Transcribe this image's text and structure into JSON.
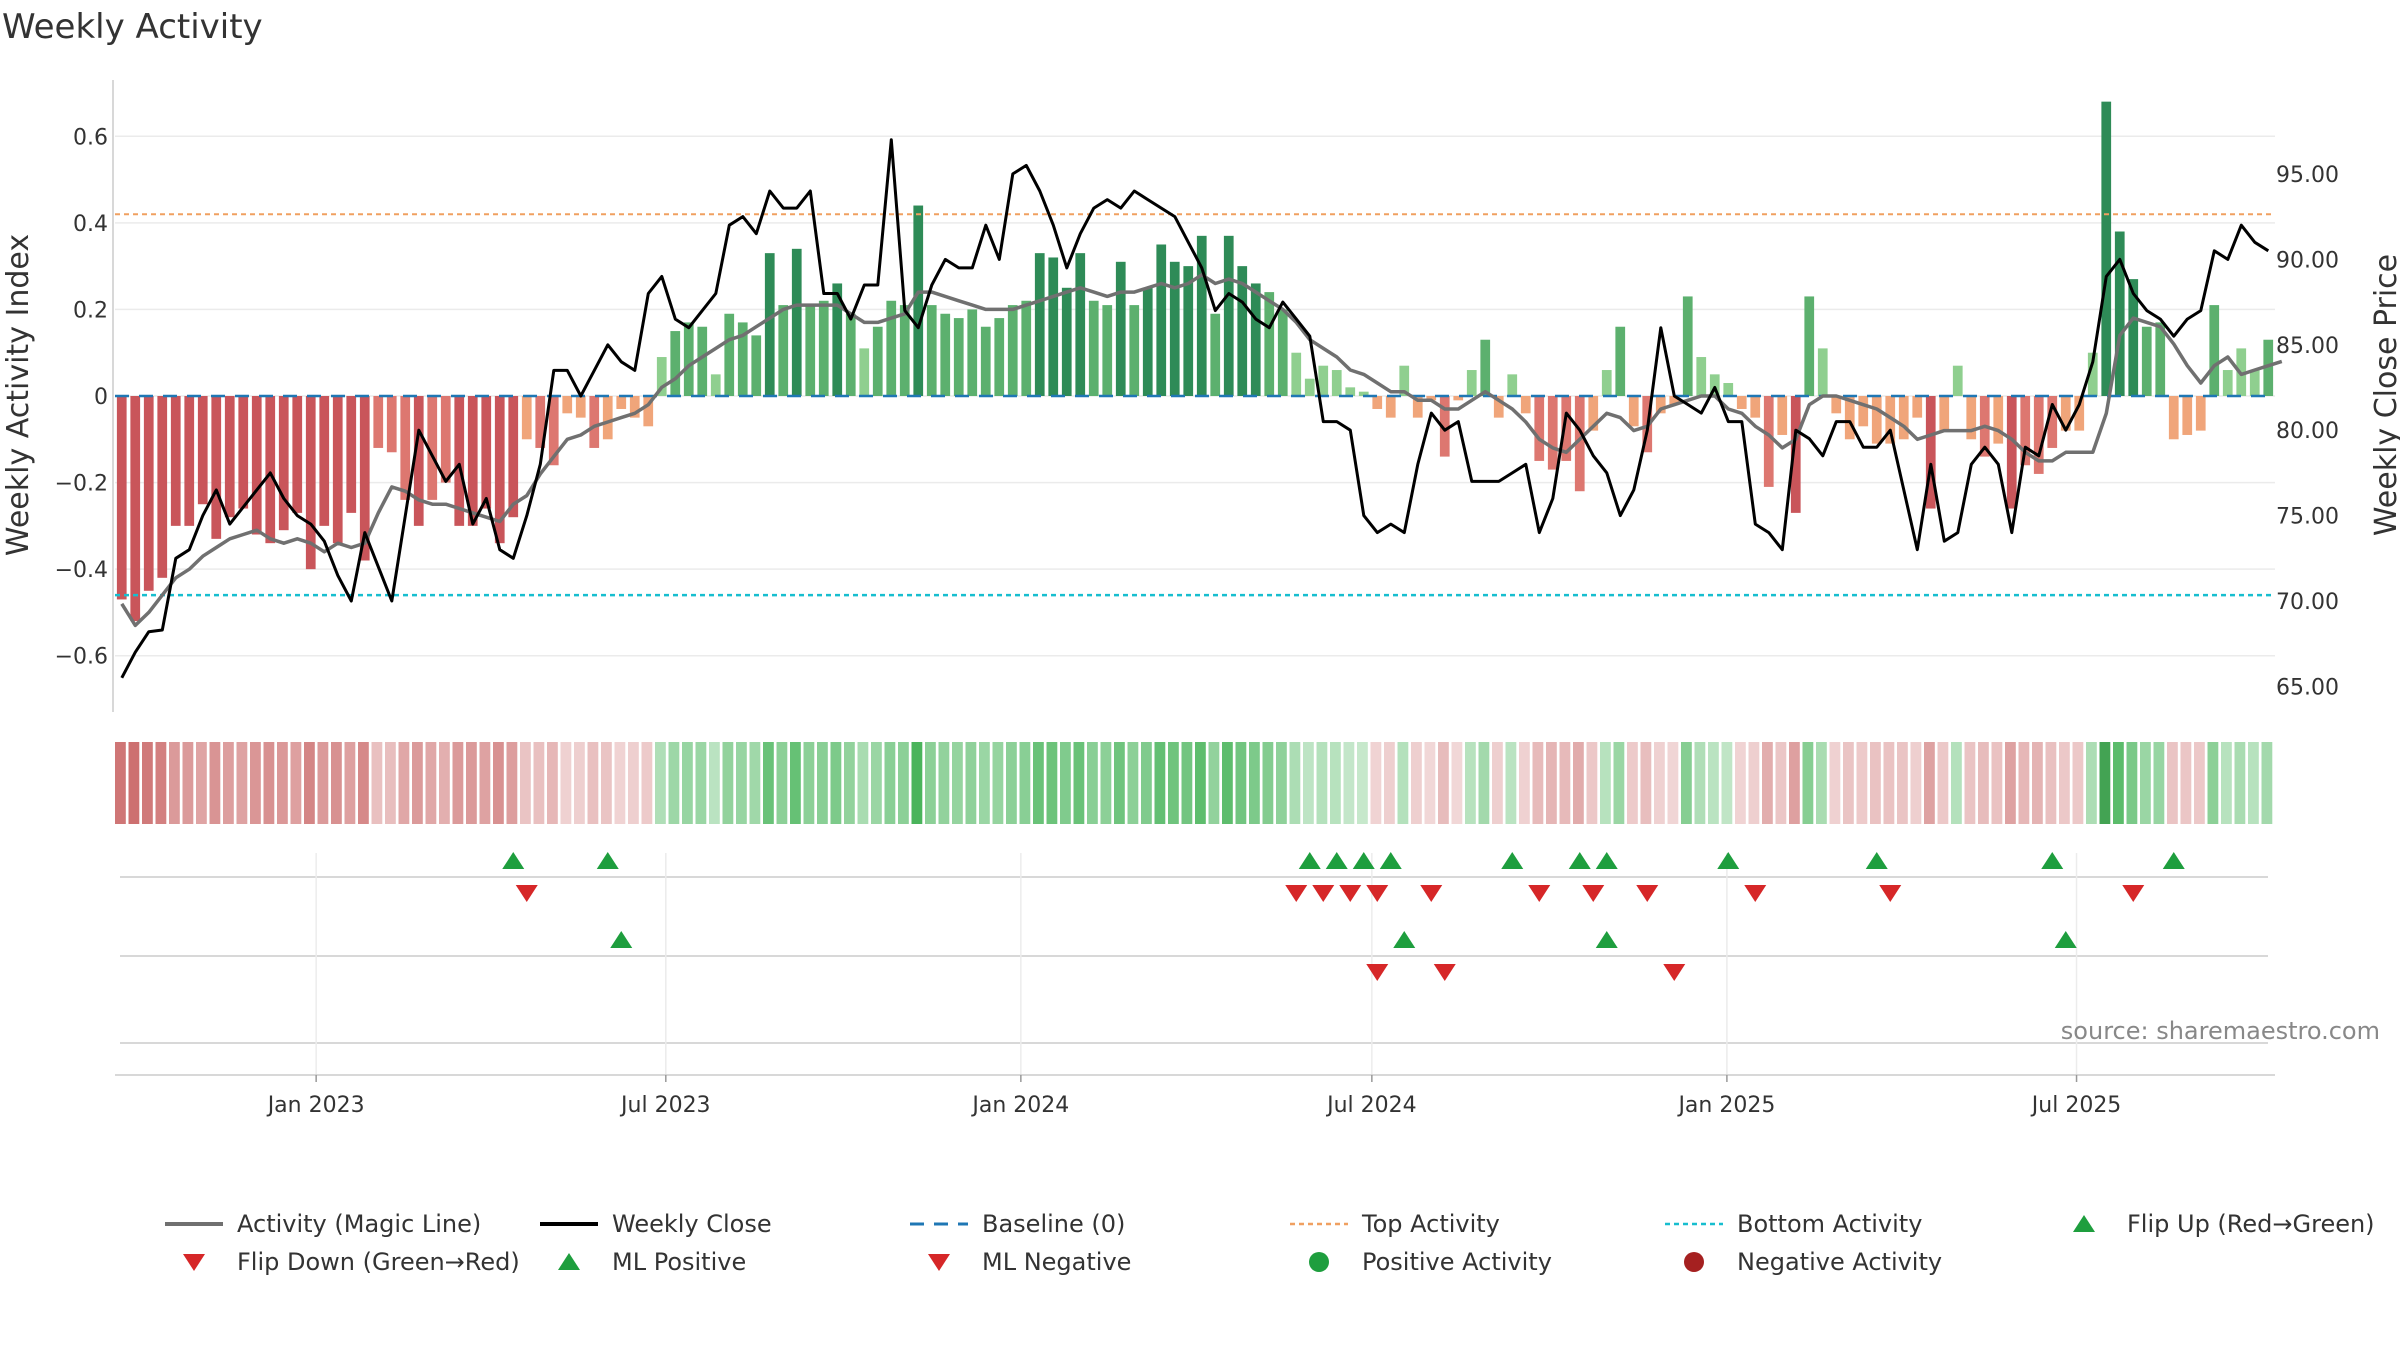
{
  "chart_data": {
    "type": "bar",
    "title": "Weekly Activity",
    "ylabel": "Weekly Activity Index",
    "y2label": "Weekly Close Price",
    "ylim": [
      -0.73,
      0.73
    ],
    "y2lim": [
      63.5,
      100.5
    ],
    "yticks": [
      -0.6,
      -0.4,
      -0.2,
      0,
      0.2,
      0.4,
      0.6
    ],
    "ytick_labels": [
      "−0.6",
      "−0.4",
      "−0.2",
      "0",
      "0.2",
      "0.4",
      "0.6"
    ],
    "y2ticks": [
      65,
      70,
      75,
      80,
      85,
      90,
      95
    ],
    "y2tick_labels": [
      "65.00",
      "70.00",
      "75.00",
      "80.00",
      "85.00",
      "90.00",
      "95.00"
    ],
    "x_start_week_index": 0,
    "xticks": [
      {
        "label": "Jan 2023",
        "week": 14.4
      },
      {
        "label": "Jul 2023",
        "week": 40.3
      },
      {
        "label": "Jan 2024",
        "week": 66.6
      },
      {
        "label": "Jul 2024",
        "week": 92.6
      },
      {
        "label": "Jan 2025",
        "week": 118.9
      },
      {
        "label": "Jul 2025",
        "week": 144.8
      }
    ],
    "top_activity": 0.42,
    "bottom_activity": -0.46,
    "baseline": 0,
    "series": [
      {
        "name": "Weekly Activity Index",
        "kind": "bar",
        "values": [
          -0.47,
          -0.52,
          -0.45,
          -0.42,
          -0.3,
          -0.3,
          -0.25,
          -0.33,
          -0.28,
          -0.26,
          -0.32,
          -0.34,
          -0.31,
          -0.27,
          -0.4,
          -0.3,
          -0.34,
          -0.27,
          -0.38,
          -0.12,
          -0.13,
          -0.24,
          -0.3,
          -0.24,
          -0.2,
          -0.3,
          -0.3,
          -0.26,
          -0.34,
          -0.28,
          -0.1,
          -0.12,
          -0.16,
          -0.04,
          -0.05,
          -0.12,
          -0.1,
          -0.03,
          -0.05,
          -0.07,
          0.09,
          0.15,
          0.17,
          0.16,
          0.05,
          0.19,
          0.17,
          0.14,
          0.33,
          0.21,
          0.34,
          0.21,
          0.22,
          0.26,
          0.19,
          0.11,
          0.16,
          0.22,
          0.21,
          0.44,
          0.21,
          0.19,
          0.18,
          0.2,
          0.16,
          0.18,
          0.21,
          0.22,
          0.33,
          0.32,
          0.25,
          0.33,
          0.22,
          0.21,
          0.31,
          0.21,
          0.25,
          0.35,
          0.31,
          0.3,
          0.37,
          0.19,
          0.37,
          0.3,
          0.26,
          0.24,
          0.2,
          0.1,
          0.04,
          0.07,
          0.06,
          0.02,
          0.01,
          -0.03,
          -0.05,
          0.07,
          -0.05,
          -0.01,
          -0.14,
          -0.01,
          0.06,
          0.13,
          -0.05,
          0.05,
          -0.04,
          -0.15,
          -0.17,
          -0.15,
          -0.22,
          -0.08,
          0.06,
          0.16,
          -0.07,
          -0.13,
          -0.04,
          -0.02,
          0.23,
          0.09,
          0.05,
          0.03,
          -0.03,
          -0.05,
          -0.21,
          -0.09,
          -0.27,
          0.23,
          0.11,
          -0.04,
          -0.1,
          -0.07,
          -0.11,
          -0.11,
          -0.1,
          -0.05,
          -0.26,
          -0.08,
          0.07,
          -0.1,
          -0.14,
          -0.11,
          -0.26,
          -0.16,
          -0.18,
          -0.12,
          -0.08,
          -0.08,
          0.1,
          0.68,
          0.38,
          0.27,
          0.16,
          0.17,
          -0.1,
          -0.09,
          -0.08,
          0.21,
          0.06,
          0.11,
          0.06,
          0.13
        ],
        "colors_note": "green when >0, red when <0"
      },
      {
        "name": "Activity (Magic Line)",
        "kind": "line",
        "color": "#707070",
        "values": [
          -0.48,
          -0.53,
          -0.5,
          -0.46,
          -0.42,
          -0.4,
          -0.37,
          -0.35,
          -0.33,
          -0.32,
          -0.31,
          -0.33,
          -0.34,
          -0.33,
          -0.34,
          -0.36,
          -0.34,
          -0.35,
          -0.34,
          -0.27,
          -0.21,
          -0.22,
          -0.24,
          -0.25,
          -0.25,
          -0.26,
          -0.27,
          -0.28,
          -0.29,
          -0.25,
          -0.23,
          -0.18,
          -0.14,
          -0.1,
          -0.09,
          -0.07,
          -0.06,
          -0.05,
          -0.04,
          -0.02,
          0.02,
          0.04,
          0.07,
          0.09,
          0.11,
          0.13,
          0.14,
          0.16,
          0.18,
          0.2,
          0.21,
          0.21,
          0.21,
          0.21,
          0.19,
          0.17,
          0.17,
          0.18,
          0.19,
          0.24,
          0.24,
          0.23,
          0.22,
          0.21,
          0.2,
          0.2,
          0.2,
          0.21,
          0.22,
          0.23,
          0.24,
          0.25,
          0.24,
          0.23,
          0.24,
          0.24,
          0.25,
          0.26,
          0.25,
          0.26,
          0.28,
          0.26,
          0.27,
          0.26,
          0.24,
          0.22,
          0.2,
          0.17,
          0.13,
          0.11,
          0.09,
          0.06,
          0.05,
          0.03,
          0.01,
          0.01,
          -0.01,
          -0.01,
          -0.03,
          -0.03,
          -0.01,
          0.01,
          -0.01,
          -0.03,
          -0.06,
          -0.1,
          -0.12,
          -0.13,
          -0.1,
          -0.07,
          -0.04,
          -0.05,
          -0.08,
          -0.07,
          -0.03,
          -0.02,
          -0.01,
          0.0,
          0.0,
          -0.03,
          -0.04,
          -0.07,
          -0.09,
          -0.12,
          -0.1,
          -0.02,
          0.0,
          0.0,
          -0.01,
          -0.02,
          -0.03,
          -0.05,
          -0.07,
          -0.1,
          -0.09,
          -0.08,
          -0.08,
          -0.08,
          -0.07,
          -0.08,
          -0.1,
          -0.13,
          -0.15,
          -0.15,
          -0.13,
          -0.13,
          -0.13,
          -0.04,
          0.14,
          0.18,
          0.17,
          0.16,
          0.12,
          0.07,
          0.03,
          0.07,
          0.09,
          0.05,
          0.06,
          0.07,
          0.08
        ]
      },
      {
        "name": "Weekly Close",
        "kind": "line",
        "axis": "right",
        "color": "#000000",
        "values": [
          65.5,
          67.0,
          68.2,
          68.3,
          72.5,
          73.0,
          75.0,
          76.5,
          74.5,
          75.5,
          76.5,
          77.5,
          76.0,
          75.0,
          74.5,
          73.5,
          71.5,
          70.0,
          74.0,
          72.0,
          70.0,
          75.0,
          80.0,
          78.5,
          77.0,
          78.0,
          74.5,
          76.0,
          73.0,
          72.5,
          75.0,
          78.0,
          83.5,
          83.5,
          82.0,
          83.5,
          85.0,
          84.0,
          83.5,
          88.0,
          89.0,
          86.5,
          86.0,
          87.0,
          88.0,
          92.0,
          92.5,
          91.5,
          94.0,
          93.0,
          93.0,
          94.0,
          88.0,
          88.0,
          86.5,
          88.5,
          88.5,
          97.0,
          87.0,
          86.0,
          88.5,
          90.0,
          89.5,
          89.5,
          92.0,
          90.0,
          95.0,
          95.5,
          94.0,
          92.0,
          89.5,
          91.5,
          93.0,
          93.5,
          93.0,
          94.0,
          93.5,
          93.0,
          92.5,
          91.0,
          89.5,
          87.0,
          88.0,
          87.5,
          86.5,
          86.0,
          87.5,
          86.5,
          85.5,
          80.5,
          80.5,
          80.0,
          75.0,
          74.0,
          74.5,
          74.0,
          78.0,
          81.0,
          80.0,
          80.5,
          77.0,
          77.0,
          77.0,
          77.5,
          78.0,
          74.0,
          76.0,
          81.0,
          80.0,
          78.5,
          77.5,
          75.0,
          76.5,
          80.0,
          86.0,
          82.0,
          81.5,
          81.0,
          82.5,
          80.5,
          80.5,
          74.5,
          74.0,
          73.0,
          80.0,
          79.5,
          78.5,
          80.5,
          80.5,
          79.0,
          79.0,
          80.0,
          76.5,
          73.0,
          78.0,
          73.5,
          74.0,
          78.0,
          79.0,
          78.0,
          74.0,
          79.0,
          78.5,
          81.5,
          80.0,
          81.5,
          84.0,
          89.0,
          90.0,
          88.0,
          87.0,
          86.5,
          85.5,
          86.5,
          87.0,
          90.5,
          90.0,
          92.0,
          91.0,
          90.5
        ]
      }
    ],
    "band": {
      "name": "Activity Strip",
      "note": "green when index > 0, red when < 0, shade follows magnitude"
    },
    "event_rows": [
      {
        "name": "Flip Up (Red→Green)",
        "row": 1,
        "direction": "up",
        "color": "#1e9e3e",
        "weeks": [
          29,
          36,
          88,
          90,
          92,
          94,
          103,
          108,
          110,
          119,
          130,
          143,
          152
        ]
      },
      {
        "name": "Flip Down (Green→Red)",
        "row": 1,
        "direction": "down",
        "color": "#d62728",
        "weeks": [
          30,
          87,
          89,
          91,
          93,
          97,
          105,
          109,
          113,
          121,
          131,
          149
        ]
      },
      {
        "name": "ML Positive",
        "row": 2,
        "direction": "up",
        "color": "#1e9e3e",
        "weeks": [
          37,
          95,
          110,
          144
        ]
      },
      {
        "name": "ML Negative",
        "row": 2,
        "direction": "down",
        "color": "#d62728",
        "weeks": [
          93,
          98,
          115
        ]
      }
    ],
    "legend": [
      {
        "label": "Activity (Magic Line)",
        "kind": "line",
        "color": "#707070"
      },
      {
        "label": "Weekly Close",
        "kind": "line",
        "color": "#000000"
      },
      {
        "label": "Baseline (0)",
        "kind": "dash",
        "color": "#1f77b4"
      },
      {
        "label": "Top Activity",
        "kind": "dot",
        "color": "#f0a060"
      },
      {
        "label": "Bottom Activity",
        "kind": "dot",
        "color": "#17becf"
      },
      {
        "label": "Flip Up (Red→Green)",
        "kind": "tri-up",
        "color": "#1e9e3e"
      },
      {
        "label": "Flip Down (Green→Red)",
        "kind": "tri-down",
        "color": "#d62728"
      },
      {
        "label": "ML Positive",
        "kind": "tri-up",
        "color": "#1e9e3e"
      },
      {
        "label": "ML Negative",
        "kind": "tri-down",
        "color": "#d62728"
      },
      {
        "label": "Positive Activity",
        "kind": "circle",
        "color": "#1e9e3e"
      },
      {
        "label": "Negative Activity",
        "kind": "circle",
        "color": "#a52020"
      }
    ],
    "source": "source: sharemaestro.com"
  }
}
